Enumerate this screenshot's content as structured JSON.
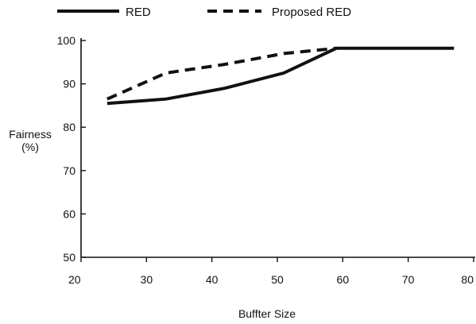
{
  "chart_data": {
    "type": "line",
    "title": "",
    "xlabel": "Buffter Size",
    "ylabel": [
      "Fairness",
      "(%)"
    ],
    "xlim": [
      20,
      80
    ],
    "ylim": [
      50,
      100
    ],
    "x_ticks": [
      20,
      30,
      40,
      50,
      60,
      70,
      80
    ],
    "y_ticks": [
      50,
      60,
      70,
      80,
      90,
      100
    ],
    "grid": false,
    "legend_position": "top",
    "series": [
      {
        "name": "RED",
        "style": "solid",
        "color": "#111111",
        "points": [
          {
            "x": 24,
            "y": 85.5
          },
          {
            "x": 33,
            "y": 86.5
          },
          {
            "x": 42,
            "y": 89
          },
          {
            "x": 51,
            "y": 92.5
          },
          {
            "x": 59,
            "y": 98.2
          },
          {
            "x": 68,
            "y": 98.2
          },
          {
            "x": 77,
            "y": 98.2
          }
        ]
      },
      {
        "name": "Proposed RED",
        "style": "dashed",
        "color": "#111111",
        "points": [
          {
            "x": 24,
            "y": 86.5
          },
          {
            "x": 33,
            "y": 92.5
          },
          {
            "x": 42,
            "y": 94.5
          },
          {
            "x": 51,
            "y": 97
          },
          {
            "x": 59,
            "y": 98.2
          }
        ]
      }
    ]
  }
}
